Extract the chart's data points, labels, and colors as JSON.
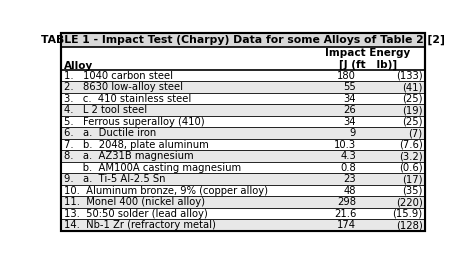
{
  "title": "TABLE 1 - Impact Test (Charpy) Data for some Alloys of Table 2 [2]",
  "col_header_left": "Alloy",
  "col_header_right_line1": "Impact Energy",
  "col_header_right_line2": "[J (ft   lb)]",
  "rows": [
    {
      "label": "1.   1040 carbon steel",
      "j": "180",
      "ftlb": "(133)"
    },
    {
      "label": "2.   8630 low-alloy steel",
      "j": "55",
      "ftlb": "(41)"
    },
    {
      "label": "3.   c.  410 stainless steel",
      "j": "34",
      "ftlb": "(25)"
    },
    {
      "label": "4.   L 2 tool steel",
      "j": "26",
      "ftlb": "(19)"
    },
    {
      "label": "5.   Ferrous superalloy (410)",
      "j": "34",
      "ftlb": "(25)"
    },
    {
      "label": "6.   a.  Ductile iron",
      "j": "9",
      "ftlb": "(7)"
    },
    {
      "label": "7.   b.  2048, plate aluminum",
      "j": "10.3",
      "ftlb": "(7.6)"
    },
    {
      "label": "8.   a.  AZ31B magnesium",
      "j": "4.3",
      "ftlb": "(3.2)"
    },
    {
      "label": "      b.  AM100A casting magnesium",
      "j": "0.8",
      "ftlb": "(0.6)"
    },
    {
      "label": "9.   a.  Ti-5 Al-2.5 Sn",
      "j": "23",
      "ftlb": "(17)"
    },
    {
      "label": "10.  Aluminum bronze, 9% (copper alloy)",
      "j": "48",
      "ftlb": "(35)"
    },
    {
      "label": "11.  Monel 400 (nickel alloy)",
      "j": "298",
      "ftlb": "(220)"
    },
    {
      "label": "13.  50:50 solder (lead alloy)",
      "j": "21.6",
      "ftlb": "(15.9)"
    },
    {
      "label": "14.  Nb-1 Zr (refractory metal)",
      "j": "174",
      "ftlb": "(128)"
    }
  ],
  "row_colors": [
    "#ffffff",
    "#e8e8e8"
  ],
  "title_bg": "#d8d8d8",
  "header_bg": "#ffffff",
  "border_color": "#000000",
  "text_color": "#000000",
  "font_size": 7.2,
  "title_font_size": 7.8,
  "header_font_size": 7.5
}
